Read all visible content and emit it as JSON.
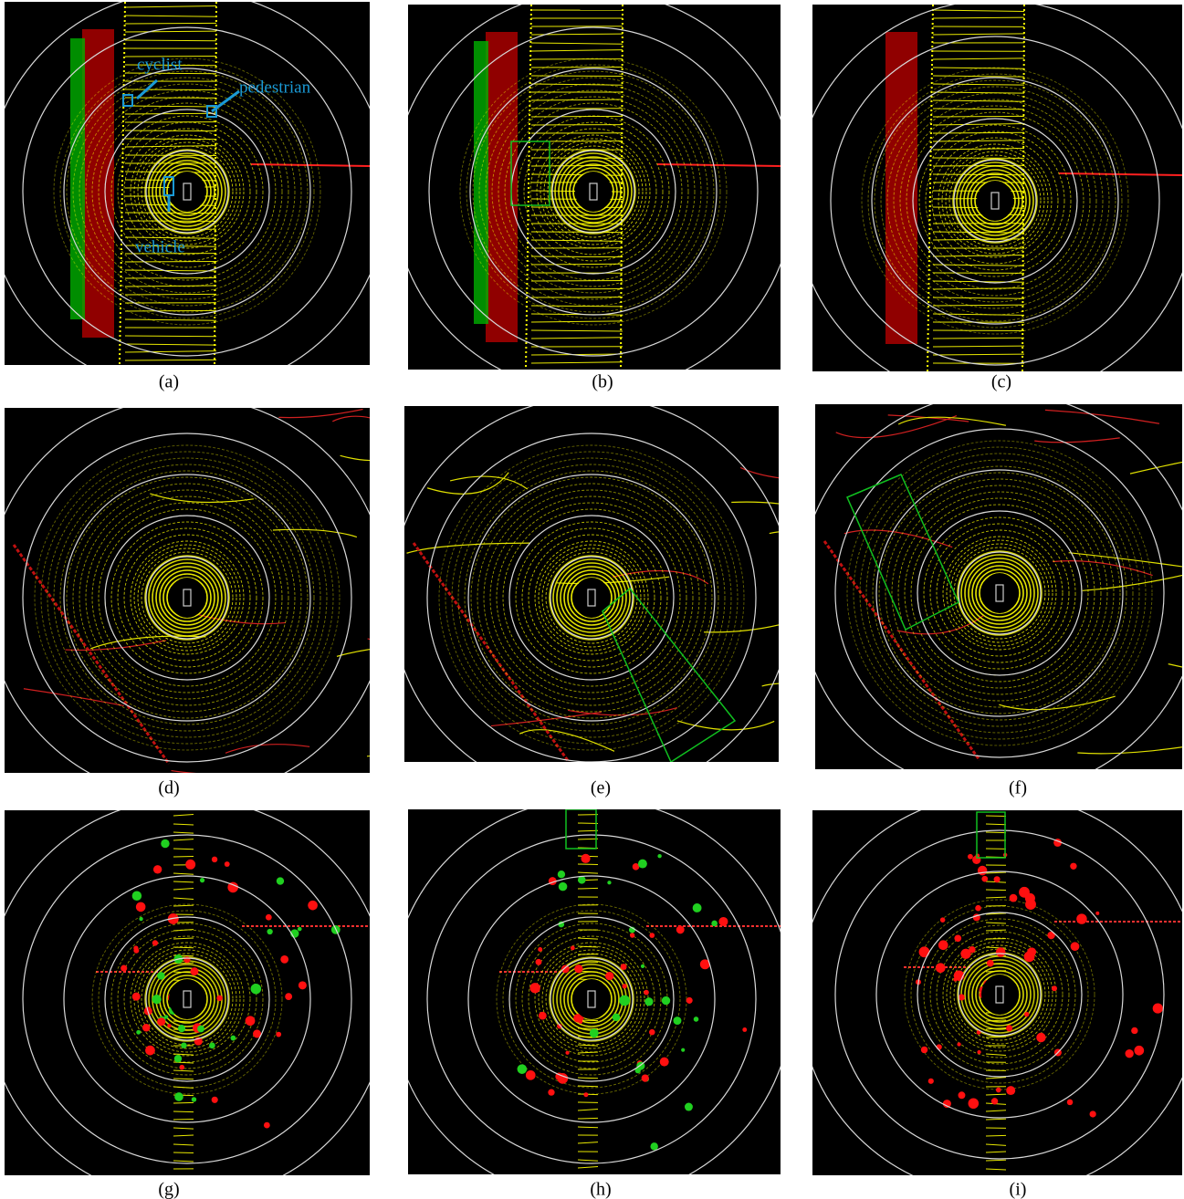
{
  "panels": [
    {
      "caption": "(a)",
      "annotations": [
        "cyclist",
        "pedestrian",
        "vehicle"
      ]
    },
    {
      "caption": "(b)"
    },
    {
      "caption": "(c)"
    },
    {
      "caption": "(d)"
    },
    {
      "caption": "(e)"
    },
    {
      "caption": "(f)"
    },
    {
      "caption": "(g)"
    },
    {
      "caption": "(h)"
    },
    {
      "caption": "(i)"
    }
  ]
}
